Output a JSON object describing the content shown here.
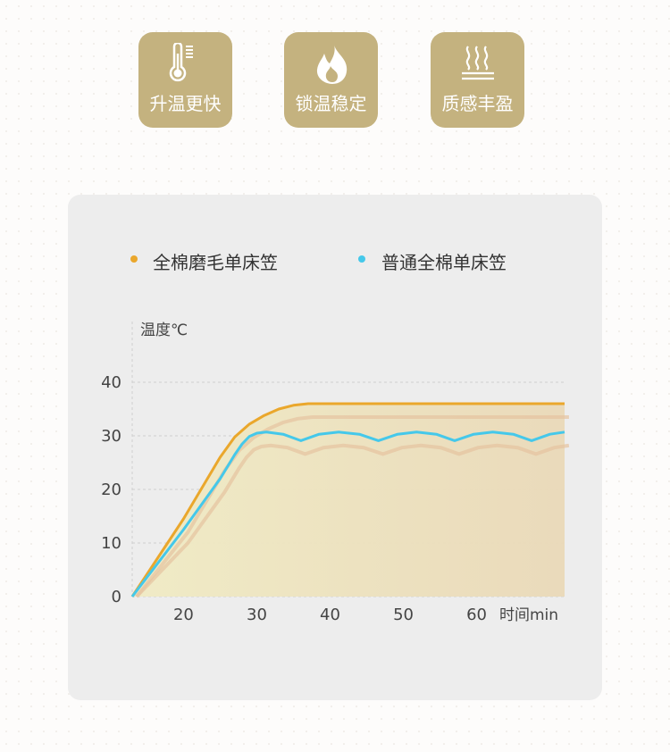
{
  "features": [
    {
      "icon": "thermometer-icon",
      "label": "升温更快"
    },
    {
      "icon": "flame-icon",
      "label": "锁温稳定"
    },
    {
      "icon": "steam-icon",
      "label": "质感丰盈"
    }
  ],
  "chart_data": {
    "type": "line",
    "title": "",
    "ylabel": "温度℃",
    "xlabel": "时间min",
    "xlim": [
      13,
      72
    ],
    "ylim": [
      0,
      40
    ],
    "xticks": [
      20,
      30,
      40,
      50,
      60
    ],
    "yticks": [
      0,
      10,
      20,
      30,
      40
    ],
    "grid": true,
    "legend_position": "top",
    "series": [
      {
        "name": "全棉磨毛单床笠",
        "color": "#eaa72c",
        "points": [
          [
            13,
            0
          ],
          [
            20,
            14.5
          ],
          [
            25,
            26
          ],
          [
            27,
            29.8
          ],
          [
            29,
            32.2
          ],
          [
            31,
            33.8
          ],
          [
            33,
            35
          ],
          [
            35,
            35.7
          ],
          [
            37,
            36
          ],
          [
            72,
            36
          ]
        ]
      },
      {
        "name": "普通全棉单床笠",
        "color": "#45c8ea",
        "points": [
          [
            13,
            0
          ],
          [
            20,
            12.5
          ],
          [
            25,
            22
          ],
          [
            27,
            26.5
          ],
          [
            28,
            28.5
          ],
          [
            29,
            29.9
          ],
          [
            30,
            30.5
          ],
          [
            31.3,
            30.7
          ],
          [
            33.6,
            30.3
          ],
          [
            36,
            29.1
          ],
          [
            38.5,
            30.3
          ],
          [
            41.2,
            30.7
          ],
          [
            44,
            30.3
          ],
          [
            46.6,
            29.1
          ],
          [
            49.2,
            30.3
          ],
          [
            51.8,
            30.7
          ],
          [
            54.5,
            30.3
          ],
          [
            57,
            29.1
          ],
          [
            59.6,
            30.3
          ],
          [
            62.2,
            30.7
          ],
          [
            65,
            30.3
          ],
          [
            67.5,
            29.1
          ],
          [
            70,
            30.3
          ],
          [
            72,
            30.7
          ]
        ]
      }
    ]
  }
}
